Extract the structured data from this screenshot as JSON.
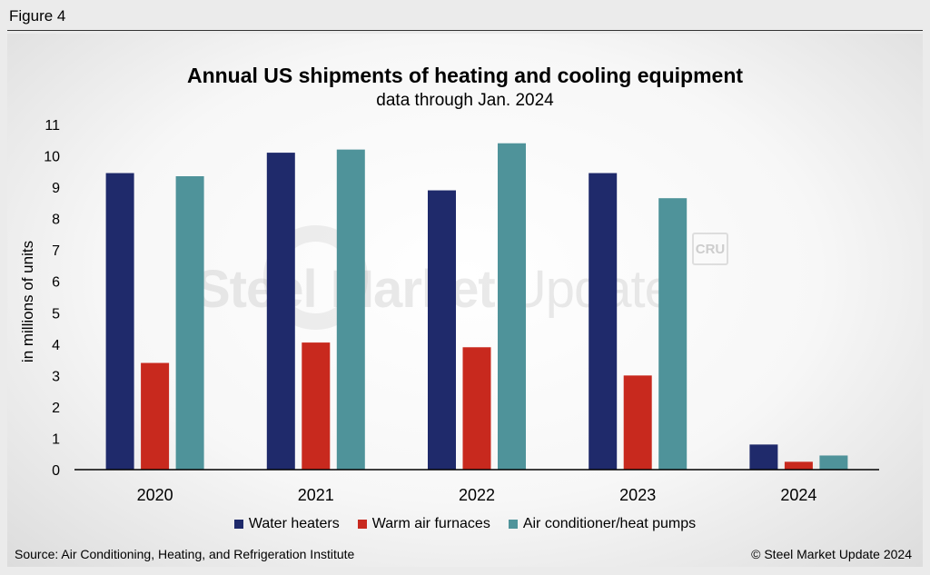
{
  "figure_label": "Figure 4",
  "watermark": {
    "bold": "Steel Market",
    "light": " Update",
    "badge": "CRU"
  },
  "footer": {
    "source": "Source: Air Conditioning, Heating, and Refrigeration Institute",
    "copyright": "© Steel Market Update 2024"
  },
  "chart_data": {
    "type": "bar",
    "title": "Annual US shipments of heating and cooling equipment",
    "subtitle": "data through Jan. 2024",
    "xlabel": "",
    "ylabel": "in millions of units",
    "ylim": [
      0,
      11
    ],
    "yticks": [
      0,
      1,
      2,
      3,
      4,
      5,
      6,
      7,
      8,
      9,
      10,
      11
    ],
    "grid": false,
    "legend_position": "bottom",
    "categories": [
      "2020",
      "2021",
      "2022",
      "2023",
      "2024"
    ],
    "series": [
      {
        "name": "Water heaters",
        "color": "#1f2a6b",
        "values": [
          9.45,
          10.1,
          8.9,
          9.45,
          0.8
        ]
      },
      {
        "name": "Warm air furnaces",
        "color": "#c8291e",
        "values": [
          3.4,
          4.05,
          3.9,
          3.0,
          0.25
        ]
      },
      {
        "name": "Air conditioner/heat pumps",
        "color": "#4f939a",
        "values": [
          9.35,
          10.2,
          10.4,
          8.65,
          0.45
        ]
      }
    ]
  }
}
